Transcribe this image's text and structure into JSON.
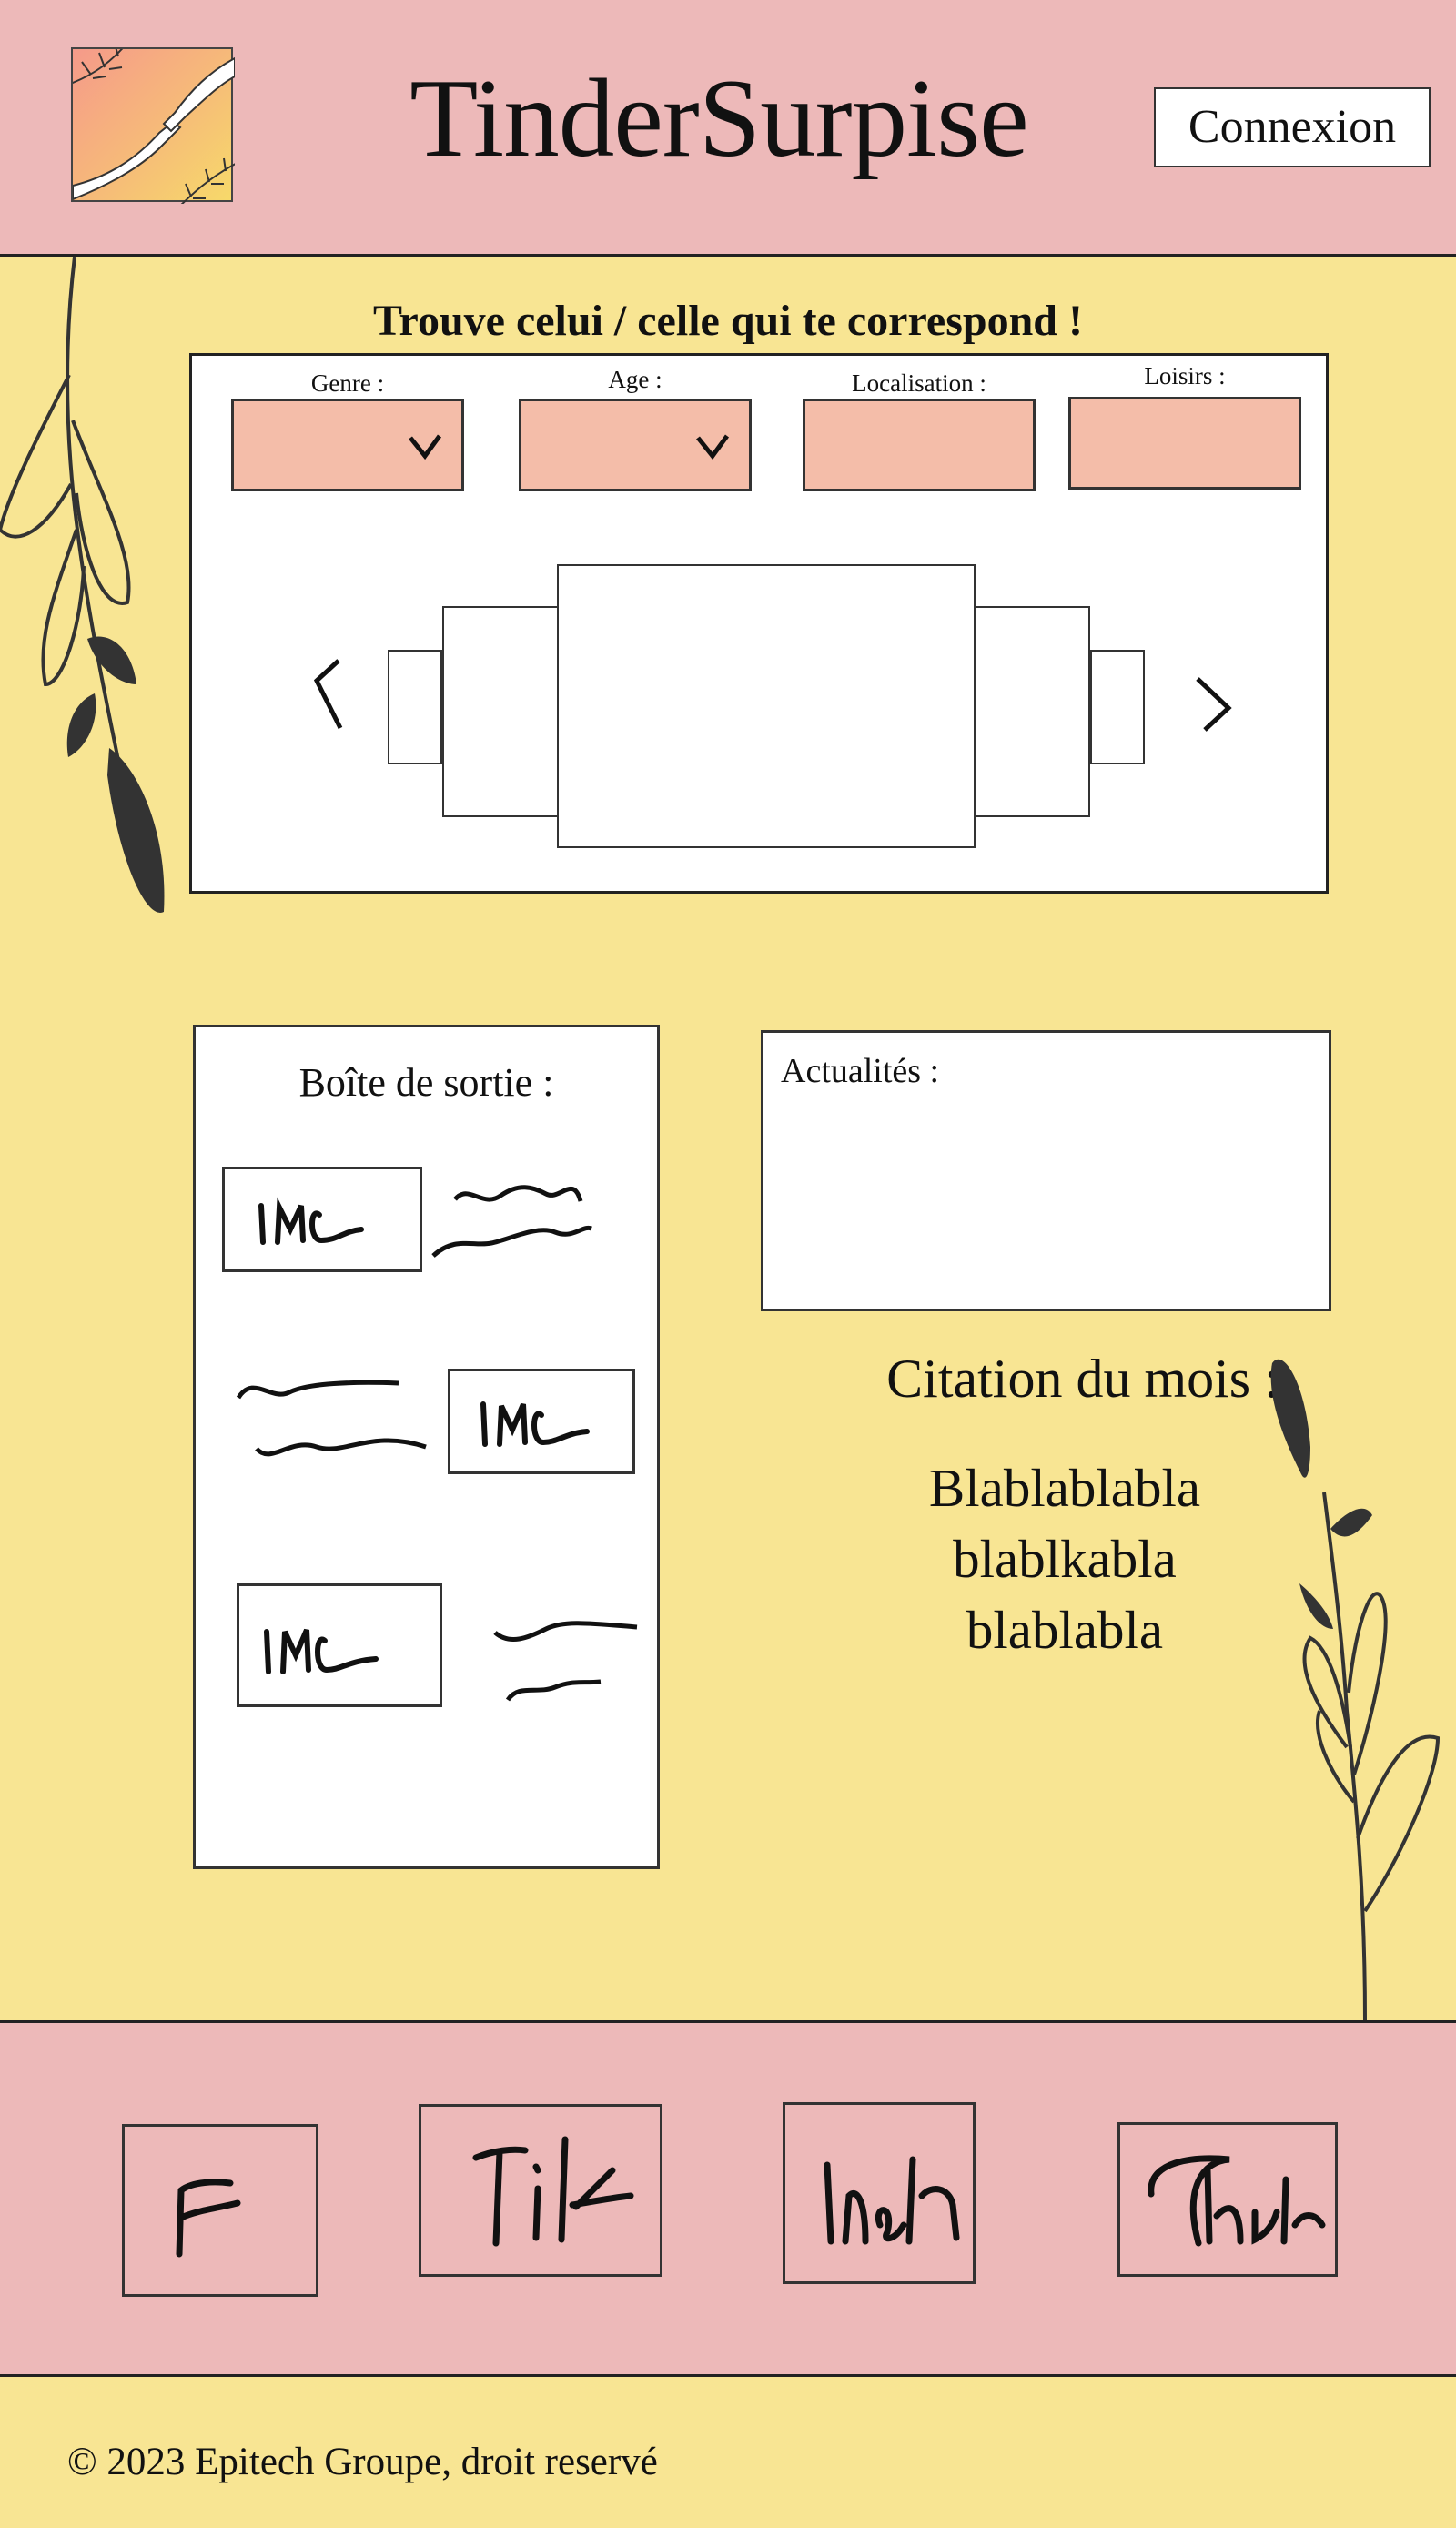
{
  "header": {
    "brand": "TinderSurpise",
    "connexion_label": "Connexion"
  },
  "search": {
    "title": "Trouve celui / celle qui te correspond !",
    "filters": [
      {
        "label": "Genre :",
        "type": "select"
      },
      {
        "label": "Age :",
        "type": "select"
      },
      {
        "label": "Localisation :",
        "type": "input"
      },
      {
        "label": "Loisirs :",
        "type": "input"
      }
    ]
  },
  "outbox": {
    "title": "Boîte de sortie :",
    "messages": [
      {
        "img_label": "IMG"
      },
      {
        "img_label": "IMG"
      },
      {
        "img_label": "IMG"
      }
    ]
  },
  "news": {
    "title": "Actualités :"
  },
  "quote": {
    "title": "Citation du mois :",
    "lines": [
      "Blablablabla",
      "blablkabla",
      "blablabla"
    ]
  },
  "social": [
    "F",
    "Tik",
    "Insta",
    "Twitter"
  ],
  "footer": {
    "copyright": "© 2023 Epitech Groupe, droit reservé"
  },
  "colors": {
    "pink": "#edb9b9",
    "yellow": "#f8e593",
    "field": "#f4bda9",
    "ink": "#222222"
  },
  "icons": [
    "logo-hands-icon",
    "chevron-down-icon",
    "chevron-left-icon",
    "chevron-right-icon",
    "leaf-branch-icon"
  ]
}
